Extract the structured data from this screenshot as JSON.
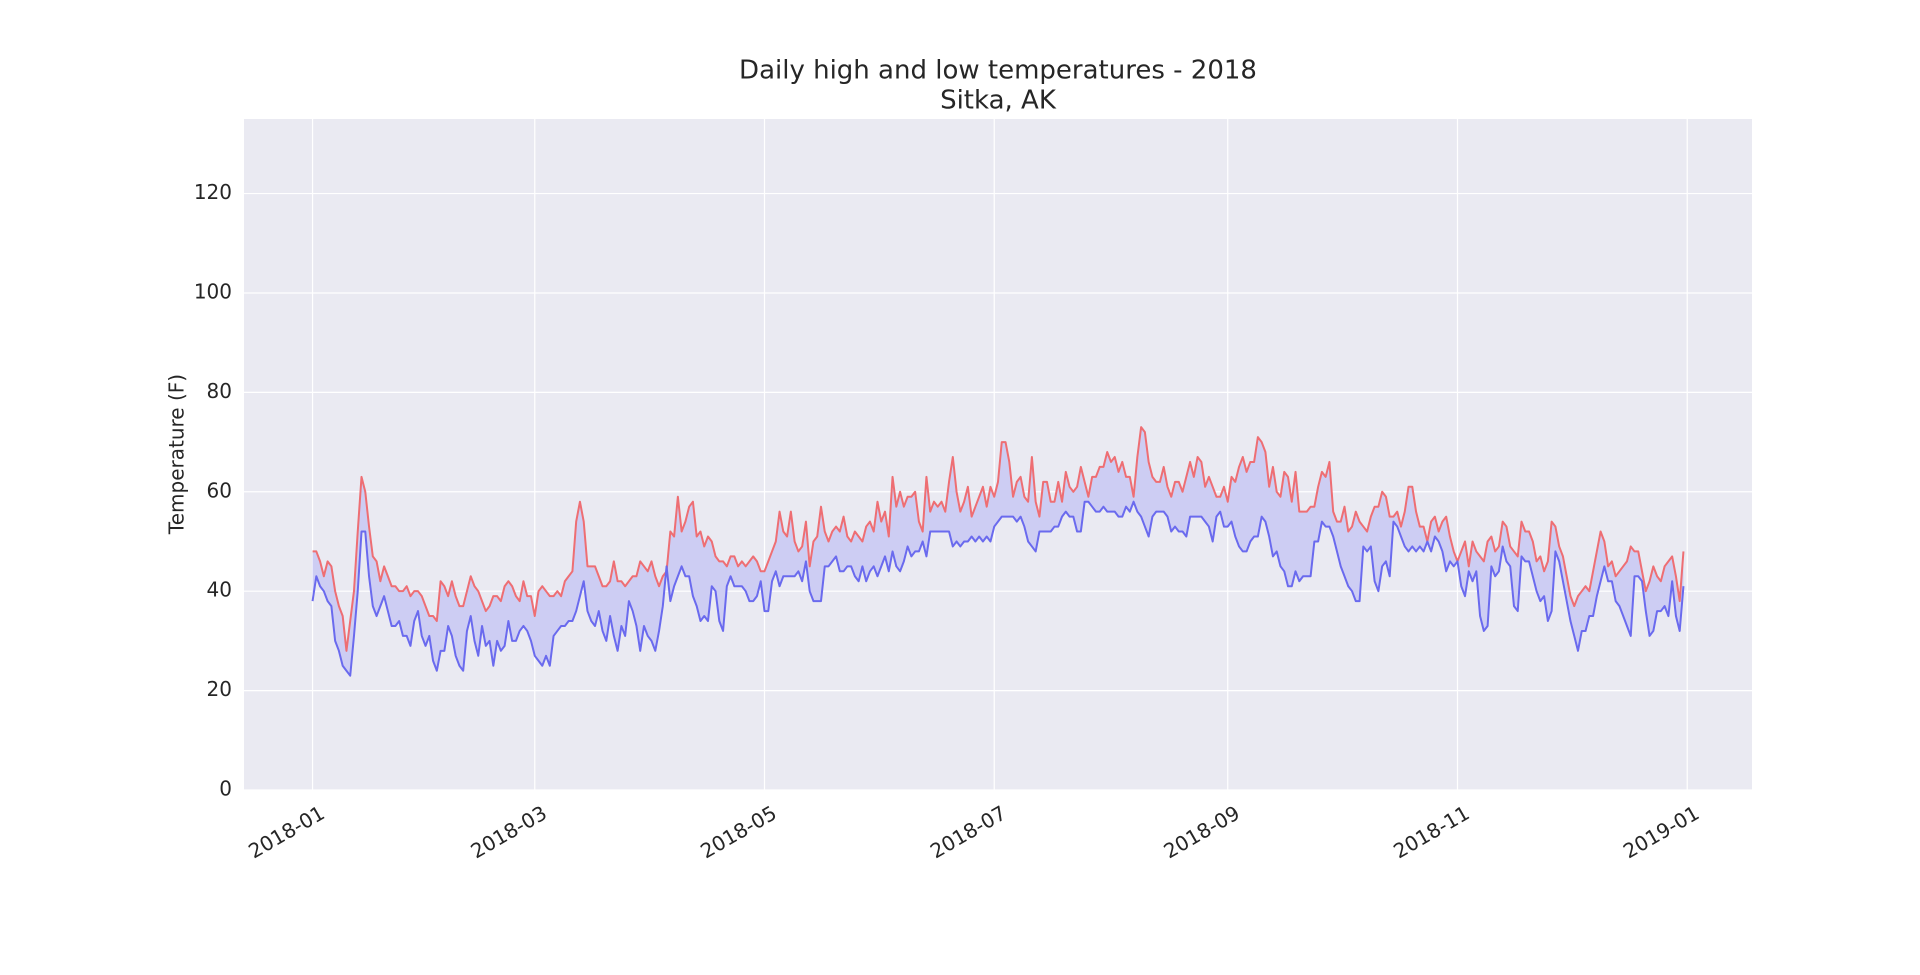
{
  "chart_data": {
    "type": "line",
    "title": "Daily high and low temperatures - 2018",
    "subtitle": "Sitka, AK",
    "y_label": "Temperature (F)",
    "xlim": [
      -18.2,
      382.2
    ],
    "xticks": [
      {
        "value": 0,
        "label": "2018-01"
      },
      {
        "value": 59,
        "label": "2018-03"
      },
      {
        "value": 120,
        "label": "2018-05"
      },
      {
        "value": 181,
        "label": "2018-07"
      },
      {
        "value": 243,
        "label": "2018-09"
      },
      {
        "value": 304,
        "label": "2018-11"
      },
      {
        "value": 365,
        "label": "2019-01"
      }
    ],
    "ylim": [
      0,
      135
    ],
    "yticks": [
      0,
      20,
      40,
      60,
      80,
      100,
      120
    ],
    "grid": true,
    "fill_between": true,
    "fill_color": "#cdcdf3",
    "series": [
      {
        "color": "#ee6e73",
        "values": [
          48,
          48,
          46,
          43,
          46,
          45,
          40,
          37,
          35,
          28,
          34,
          40,
          52,
          63,
          60,
          53,
          47,
          46,
          42,
          45,
          43,
          41,
          41,
          40,
          40,
          41,
          39,
          40,
          40,
          39,
          37,
          35,
          35,
          34,
          42,
          41,
          39,
          42,
          39,
          37,
          37,
          40,
          43,
          41,
          40,
          38,
          36,
          37,
          39,
          39,
          38,
          41,
          42,
          41,
          39,
          38,
          42,
          39,
          39,
          35,
          40,
          41,
          40,
          39,
          39,
          40,
          39,
          42,
          43,
          44,
          54,
          58,
          54,
          45,
          45,
          45,
          43,
          41,
          41,
          42,
          46,
          42,
          42,
          41,
          42,
          43,
          43,
          46,
          45,
          44,
          46,
          43,
          41,
          43,
          44,
          52,
          51,
          59,
          52,
          54,
          57,
          58,
          51,
          52,
          49,
          51,
          50,
          47,
          46,
          46,
          45,
          47,
          47,
          45,
          46,
          45,
          46,
          47,
          46,
          44,
          44,
          46,
          48,
          50,
          56,
          52,
          51,
          56,
          50,
          48,
          49,
          54,
          45,
          50,
          51,
          57,
          52,
          50,
          52,
          53,
          52,
          55,
          51,
          50,
          52,
          51,
          50,
          53,
          54,
          52,
          58,
          54,
          56,
          51,
          63,
          57,
          60,
          57,
          59,
          59,
          60,
          54,
          52,
          63,
          56,
          58,
          57,
          58,
          56,
          62,
          67,
          60,
          56,
          58,
          61,
          55,
          57,
          59,
          61,
          57,
          61,
          59,
          62,
          70,
          70,
          66,
          59,
          62,
          63,
          59,
          58,
          67,
          58,
          55,
          62,
          62,
          58,
          58,
          62,
          58,
          64,
          61,
          60,
          61,
          65,
          62,
          59,
          63,
          63,
          65,
          65,
          68,
          66,
          67,
          64,
          66,
          63,
          63,
          59,
          67,
          73,
          72,
          66,
          63,
          62,
          62,
          65,
          61,
          59,
          62,
          62,
          60,
          63,
          66,
          63,
          67,
          66,
          61,
          63,
          61,
          59,
          59,
          61,
          58,
          63,
          62,
          65,
          67,
          64,
          66,
          66,
          71,
          70,
          68,
          61,
          65,
          60,
          59,
          64,
          63,
          58,
          64,
          56,
          56,
          56,
          57,
          57,
          61,
          64,
          63,
          66,
          56,
          54,
          54,
          57,
          52,
          53,
          56,
          54,
          53,
          52,
          55,
          57,
          57,
          60,
          59,
          55,
          55,
          56,
          53,
          56,
          61,
          61,
          56,
          53,
          53,
          50,
          54,
          55,
          52,
          54,
          55,
          51,
          48,
          46,
          48,
          50,
          45,
          50,
          48,
          47,
          46,
          50,
          51,
          48,
          49,
          54,
          53,
          49,
          48,
          47,
          54,
          52,
          52,
          50,
          46,
          47,
          44,
          46,
          54,
          53,
          49,
          47,
          43,
          39,
          37,
          39,
          40,
          41,
          40,
          44,
          48,
          52,
          50,
          45,
          46,
          43,
          44,
          45,
          46,
          49,
          48,
          48,
          44,
          40,
          42,
          45,
          43,
          42,
          45,
          46,
          47,
          43,
          38,
          48
        ]
      },
      {
        "color": "#6a6aee",
        "values": [
          38,
          43,
          41,
          40,
          38,
          37,
          30,
          28,
          25,
          24,
          23,
          31,
          40,
          52,
          52,
          43,
          37,
          35,
          37,
          39,
          36,
          33,
          33,
          34,
          31,
          31,
          29,
          34,
          36,
          31,
          29,
          31,
          26,
          24,
          28,
          28,
          33,
          31,
          27,
          25,
          24,
          32,
          35,
          30,
          27,
          33,
          29,
          30,
          25,
          30,
          28,
          29,
          34,
          30,
          30,
          32,
          33,
          32,
          30,
          27,
          26,
          25,
          27,
          25,
          31,
          32,
          33,
          33,
          34,
          34,
          36,
          39,
          42,
          36,
          34,
          33,
          36,
          32,
          30,
          35,
          31,
          28,
          33,
          31,
          38,
          36,
          33,
          28,
          33,
          31,
          30,
          28,
          32,
          37,
          45,
          38,
          41,
          43,
          45,
          43,
          43,
          39,
          37,
          34,
          35,
          34,
          41,
          40,
          34,
          32,
          41,
          43,
          41,
          41,
          41,
          40,
          38,
          38,
          39,
          42,
          36,
          36,
          42,
          44,
          41,
          43,
          43,
          43,
          43,
          44,
          42,
          46,
          40,
          38,
          38,
          38,
          45,
          45,
          46,
          47,
          44,
          44,
          45,
          45,
          43,
          42,
          45,
          42,
          44,
          45,
          43,
          45,
          47,
          44,
          48,
          45,
          44,
          46,
          49,
          47,
          48,
          48,
          50,
          47,
          52,
          52,
          52,
          52,
          52,
          52,
          49,
          50,
          49,
          50,
          50,
          51,
          50,
          51,
          50,
          51,
          50,
          53,
          54,
          55,
          55,
          55,
          55,
          54,
          55,
          53,
          50,
          49,
          48,
          52,
          52,
          52,
          52,
          53,
          53,
          55,
          56,
          55,
          55,
          52,
          52,
          58,
          58,
          57,
          56,
          56,
          57,
          56,
          56,
          56,
          55,
          55,
          57,
          56,
          58,
          56,
          55,
          53,
          51,
          55,
          56,
          56,
          56,
          55,
          52,
          53,
          52,
          52,
          51,
          55,
          55,
          55,
          55,
          54,
          53,
          50,
          55,
          56,
          53,
          53,
          54,
          51,
          49,
          48,
          48,
          50,
          51,
          51,
          55,
          54,
          51,
          47,
          48,
          45,
          44,
          41,
          41,
          44,
          42,
          43,
          43,
          43,
          50,
          50,
          54,
          53,
          53,
          51,
          48,
          45,
          43,
          41,
          40,
          38,
          38,
          49,
          48,
          49,
          42,
          40,
          45,
          46,
          43,
          54,
          53,
          51,
          49,
          48,
          49,
          48,
          49,
          48,
          50,
          48,
          51,
          50,
          48,
          44,
          46,
          45,
          46,
          41,
          39,
          44,
          42,
          44,
          35,
          32,
          33,
          45,
          43,
          44,
          49,
          46,
          45,
          37,
          36,
          47,
          46,
          46,
          43,
          40,
          38,
          39,
          34,
          36,
          48,
          46,
          42,
          38,
          34,
          31,
          28,
          32,
          32,
          35,
          35,
          39,
          42,
          45,
          42,
          42,
          38,
          37,
          35,
          33,
          31,
          43,
          43,
          42,
          36,
          31,
          32,
          36,
          36,
          37,
          35,
          42,
          35,
          32,
          41
        ]
      }
    ]
  }
}
